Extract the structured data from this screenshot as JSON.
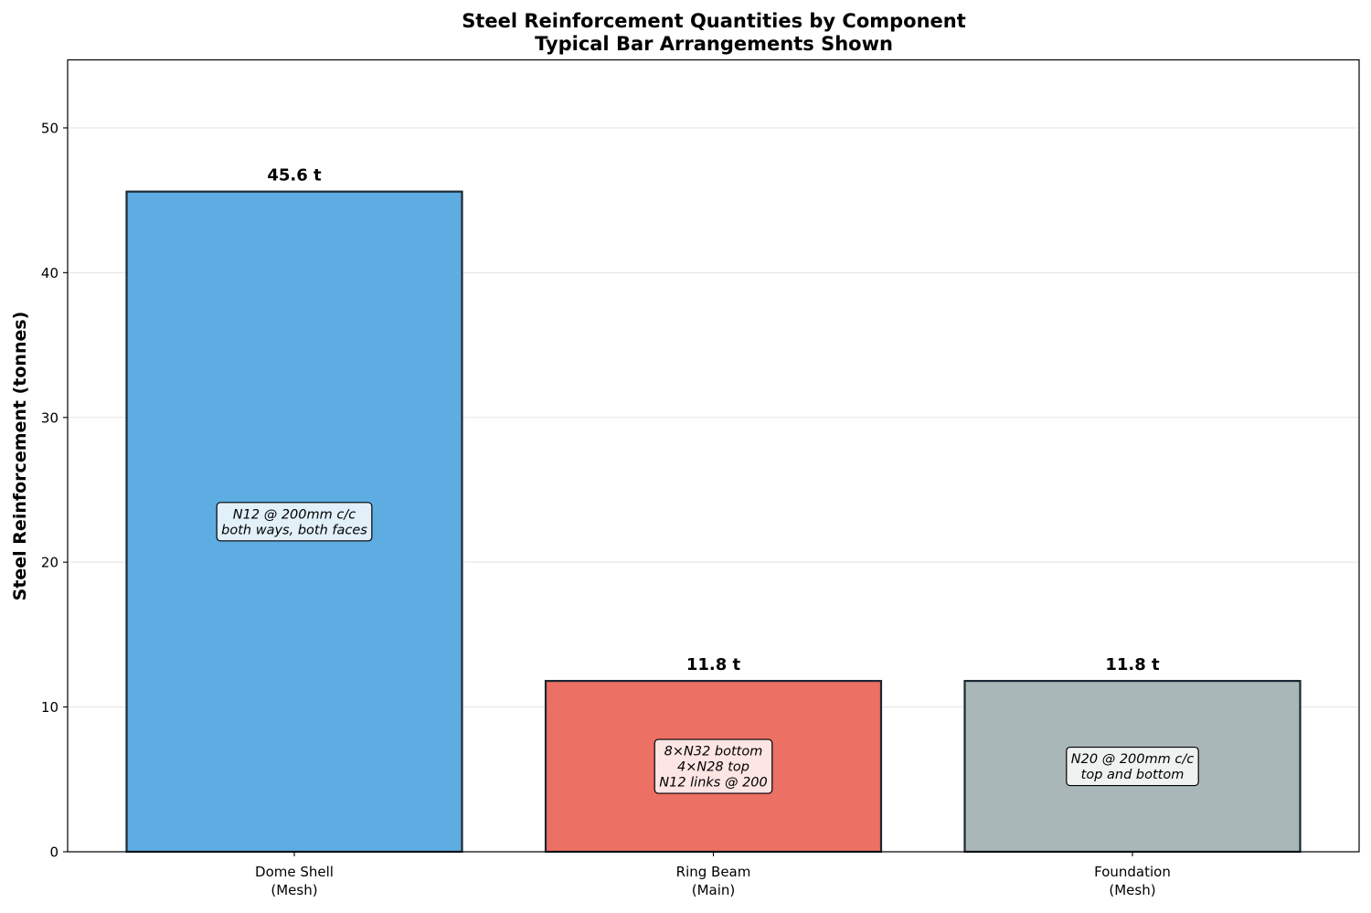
{
  "chart_data": {
    "type": "bar",
    "title_lines": [
      "Steel Reinforcement Quantities by Component",
      "Typical Bar Arrangements Shown"
    ],
    "xlabel": "",
    "ylabel": "Steel Reinforcement (tonnes)",
    "ylim": [
      0,
      54.7
    ],
    "yticks": [
      0,
      10,
      20,
      30,
      40,
      50
    ],
    "grid": "y-axis, light",
    "categories": [
      [
        "Dome Shell",
        "(Mesh)"
      ],
      [
        "Ring Beam",
        "(Main)"
      ],
      [
        "Foundation",
        "(Mesh)"
      ]
    ],
    "values": [
      45.6,
      11.8,
      11.8
    ],
    "value_labels": [
      "45.6 t",
      "11.8 t",
      "11.8 t"
    ],
    "bar_colors": [
      "#5DADE2",
      "#EC7063",
      "#AAB7B8"
    ],
    "annotations": [
      [
        "N12 @ 200mm c/c",
        "both ways, both faces"
      ],
      [
        "8×N32 bottom",
        "4×N28 top",
        "N12 links @ 200"
      ],
      [
        "N20 @ 200mm c/c",
        "top and bottom"
      ]
    ]
  }
}
